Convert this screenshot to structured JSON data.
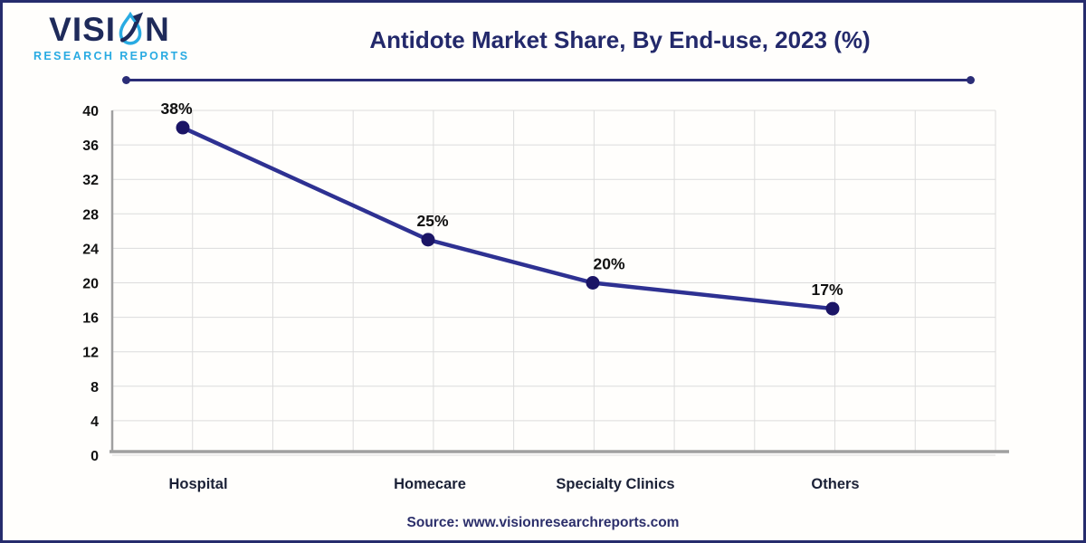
{
  "page": {
    "border_color": "#262c6d",
    "background": "#fffefc"
  },
  "logo": {
    "word_left": "VISI",
    "word_right": "N",
    "subtitle": "RESEARCH REPORTS",
    "accent_color": "#29abe2",
    "navy_color": "#1e2a5a"
  },
  "header": {
    "title": "Antidote Market Share, By End-use, 2023 (%)"
  },
  "footer": {
    "source": "Source: www.visionresearchreports.com"
  },
  "chart_data": {
    "type": "line",
    "title": "Antidote Market Share, By End-use, 2023 (%)",
    "categories": [
      "Hospital",
      "Homecare",
      "Specialty Clinics",
      "Others"
    ],
    "values": [
      38,
      25,
      20,
      17
    ],
    "point_labels": [
      "38%",
      "25%",
      "20%",
      "17%"
    ],
    "xlabel": "",
    "ylabel": "",
    "ylim": [
      0,
      40
    ],
    "ytick_step": 4,
    "yticks": [
      0,
      4,
      8,
      12,
      16,
      20,
      24,
      28,
      32,
      36,
      40
    ],
    "grid": true,
    "legend": "none",
    "line_color": "#2e3192",
    "marker_color": "#1b1566",
    "value_label_color": "#101010",
    "axis_color": "#a0a0a0",
    "grid_color": "#dcdcdc",
    "tick_label_color": "#111111",
    "category_label_color": "#1b2137"
  }
}
